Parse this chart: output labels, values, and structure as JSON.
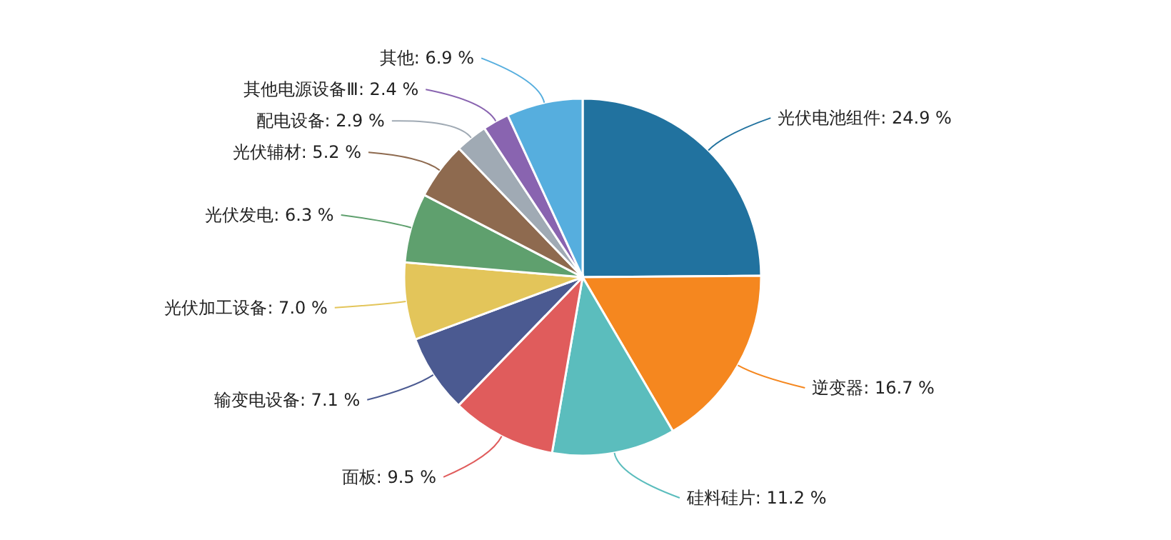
{
  "chart_data": {
    "type": "pie",
    "categories": [
      "光伏电池组件",
      "逆变器",
      "硅料硅片",
      "面板",
      "输变电设备",
      "光伏加工设备",
      "光伏发电",
      "光伏辅材",
      "配电设备",
      "其他电源设备Ⅲ",
      "其他"
    ],
    "values": [
      24.9,
      16.7,
      11.2,
      9.5,
      7.1,
      7.0,
      6.3,
      5.2,
      2.9,
      2.4,
      6.9
    ],
    "value_labels": [
      "24.9 %",
      "16.7 %",
      "11.2 %",
      "9.5 %",
      "7.1 %",
      "7.0 %",
      "6.3 %",
      "5.2 %",
      "2.9 %",
      "2.4 %",
      "6.9 %"
    ],
    "colors": [
      "#21729f",
      "#f5871f",
      "#5bbdbd",
      "#e05c5c",
      "#4b5a91",
      "#e3c55a",
      "#5fa06e",
      "#8e6a4f",
      "#a0aab4",
      "#8964b0",
      "#56aede"
    ]
  }
}
